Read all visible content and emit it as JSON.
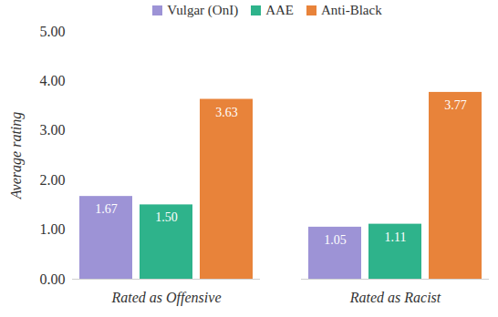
{
  "chart_data": {
    "type": "bar",
    "categories": [
      "Rated as Offensive",
      "Rated as Racist"
    ],
    "series": [
      {
        "name": "Vulgar (OnI)",
        "color": "#9d93d6",
        "values": [
          1.67,
          1.05
        ],
        "value_labels": [
          "1.67",
          "1.05"
        ]
      },
      {
        "name": "AAE",
        "color": "#2eb38b",
        "values": [
          1.5,
          1.11
        ],
        "value_labels": [
          "1.50",
          "1.11"
        ]
      },
      {
        "name": "Anti-Black",
        "color": "#e8833a",
        "values": [
          3.63,
          3.77
        ],
        "value_labels": [
          "3.63",
          "3.77"
        ]
      }
    ],
    "ylabel": "Average rating",
    "ylim": [
      0,
      5
    ],
    "yticks": [
      {
        "value": 0,
        "label": "0.00"
      },
      {
        "value": 1,
        "label": "1.00"
      },
      {
        "value": 2,
        "label": "2.00"
      },
      {
        "value": 3,
        "label": "3.00"
      },
      {
        "value": 4,
        "label": "4.00"
      },
      {
        "value": 5,
        "label": "5.00"
      }
    ],
    "grid": false,
    "legend": "top",
    "data_labels": true
  }
}
